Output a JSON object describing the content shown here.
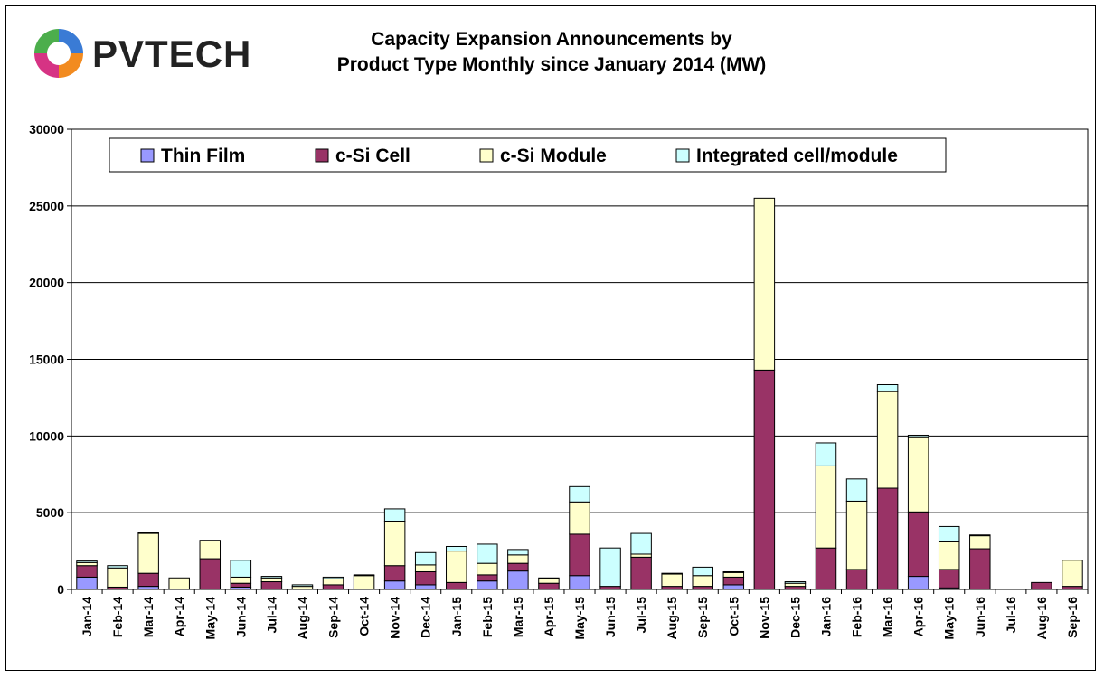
{
  "logo": {
    "text": "PVTECH",
    "icon": "pvtech-swirl-logo"
  },
  "title_line1": "Capacity Expansion Announcements by",
  "title_line2": "Product Type Monthly since January 2014 (MW)",
  "chart_data": {
    "type": "bar",
    "stacked": true,
    "title": "Capacity Expansion Announcements by Product Type Monthly since January 2014 (MW)",
    "xlabel": "",
    "ylabel": "",
    "ylim": [
      0,
      30000
    ],
    "yticks": [
      0,
      5000,
      10000,
      15000,
      20000,
      25000,
      30000
    ],
    "grid": true,
    "legend_position": "top",
    "categories": [
      "Jan-14",
      "Feb-14",
      "Mar-14",
      "Apr-14",
      "May-14",
      "Jun-14",
      "Jul-14",
      "Aug-14",
      "Sep-14",
      "Oct-14",
      "Nov-14",
      "Dec-14",
      "Jan-15",
      "Feb-15",
      "Mar-15",
      "Apr-15",
      "May-15",
      "Jun-15",
      "Jul-15",
      "Aug-15",
      "Sep-15",
      "Oct-15",
      "Nov-15",
      "Dec-15",
      "Jan-16",
      "Feb-16",
      "Mar-16",
      "Apr-16",
      "May-16",
      "Jun-16",
      "Jul-16",
      "Aug-16",
      "Sep-16"
    ],
    "series": [
      {
        "name": "Thin Film",
        "color": "#9999ff",
        "values": [
          800,
          0,
          200,
          0,
          0,
          150,
          0,
          0,
          0,
          0,
          550,
          300,
          0,
          550,
          1200,
          0,
          900,
          0,
          0,
          0,
          0,
          300,
          0,
          0,
          0,
          0,
          0,
          850,
          100,
          0,
          0,
          0,
          0
        ]
      },
      {
        "name": "c-Si Cell",
        "color": "#993366",
        "values": [
          750,
          150,
          850,
          0,
          2000,
          250,
          500,
          0,
          300,
          0,
          1000,
          850,
          450,
          400,
          500,
          400,
          2700,
          200,
          2100,
          200,
          200,
          500,
          14300,
          200,
          2700,
          1300,
          6600,
          4200,
          1200,
          2650,
          0,
          450,
          200
        ]
      },
      {
        "name": "c-Si Module",
        "color": "#ffffcc",
        "values": [
          200,
          1250,
          2600,
          750,
          1200,
          400,
          250,
          200,
          400,
          900,
          2900,
          450,
          2050,
          750,
          550,
          300,
          2100,
          0,
          200,
          800,
          700,
          300,
          11200,
          200,
          5350,
          4450,
          6300,
          4900,
          1800,
          850,
          0,
          0,
          1700
        ]
      },
      {
        "name": "Integrated cell/module",
        "color": "#ccffff",
        "values": [
          100,
          150,
          50,
          0,
          0,
          1100,
          100,
          100,
          100,
          50,
          800,
          800,
          300,
          1250,
          350,
          50,
          1000,
          2500,
          1350,
          50,
          550,
          50,
          0,
          100,
          1500,
          1450,
          450,
          100,
          1000,
          50,
          0,
          0,
          0
        ]
      }
    ]
  }
}
